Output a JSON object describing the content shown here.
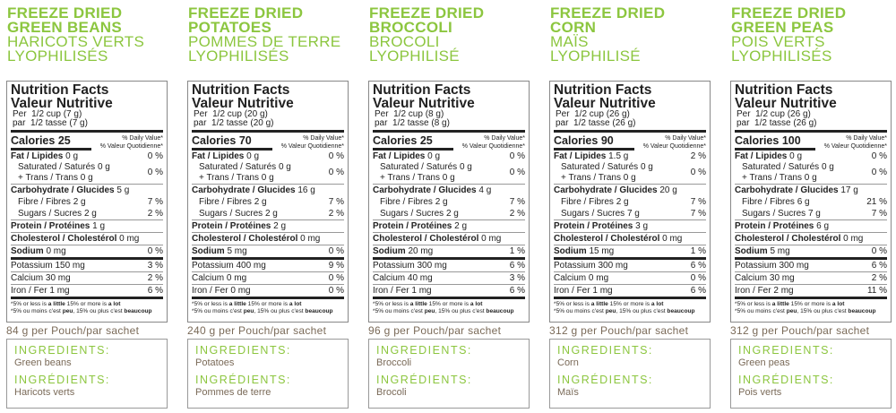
{
  "labels": {
    "nf_en": "Nutrition Facts",
    "nf_fr": "Valeur Nutritive",
    "per": "Per",
    "par": "par",
    "dv_en": "% Daily Value*",
    "dv_fr": "% Valeur Quotidienne*",
    "fat": "Fat / Lipides",
    "sat": "Saturated / Saturés",
    "trans": "+ Trans / Trans",
    "carb": "Carbohydrate / Glucides",
    "fibre": "Fibre / Fibres",
    "sugars": "Sugars / Sucres",
    "protein": "Protein / Protéines",
    "chol": "Cholesterol / Cholestérol",
    "sodium": "Sodium",
    "potassium": "Potassium",
    "calcium": "Calcium",
    "iron": "Iron / Fer",
    "calories": "Calories",
    "foot1a": "*5% or less is ",
    "foot1b": "a little",
    "foot1c": " 15% or more is ",
    "foot1d": "a lot",
    "foot2a": "*5% ou moins c'est ",
    "foot2b": "peu",
    "foot2c": ", 15% ou plus c'est ",
    "foot2d": "beaucoup",
    "ing_en": "INGREDIENTS:",
    "ing_fr": "INGRÉDIENTS:"
  },
  "colors": {
    "accent": "#8cc63f",
    "text_brown": "#7a6a58"
  },
  "products": [
    {
      "title_en": [
        "FREEZE DRIED",
        "GREEN BEANS"
      ],
      "title_fr": [
        "HARICOTS VERTS",
        "LYOPHILISÉS"
      ],
      "serving_en": "1/2 cup (7 g)",
      "serving_fr": "1/2 tasse (7 g)",
      "calories": "25",
      "fat": "0 g",
      "fat_dv": "0 %",
      "sat": "0 g",
      "trans": "0 g",
      "sat_dv": "0 %",
      "carb": "5 g",
      "fibre": "2 g",
      "fibre_dv": "7 %",
      "sugars": "2 g",
      "sugars_dv": "2 %",
      "protein": "1 g",
      "chol": "0 mg",
      "sodium": "0 mg",
      "sodium_dv": "0 %",
      "potassium": "150 mg",
      "potassium_dv": "3 %",
      "calcium": "30 mg",
      "calcium_dv": "2 %",
      "iron": "1 mg",
      "iron_dv": "6 %",
      "pouch": "84 g per Pouch/par sachet",
      "ing_en": "Green beans",
      "ing_fr": "Haricots verts"
    },
    {
      "title_en": [
        "FREEZE DRIED",
        "POTATOES"
      ],
      "title_fr": [
        "POMMES DE TERRE",
        "LYOPHILISÉS"
      ],
      "serving_en": "1/2 cup (20 g)",
      "serving_fr": "1/2 tasse (20 g)",
      "calories": "70",
      "fat": "0 g",
      "fat_dv": "0 %",
      "sat": "0 g",
      "trans": "0 g",
      "sat_dv": "0 %",
      "carb": "16 g",
      "fibre": "2 g",
      "fibre_dv": "7 %",
      "sugars": "2 g",
      "sugars_dv": "2 %",
      "protein": "2 g",
      "chol": "0 mg",
      "sodium": "5 mg",
      "sodium_dv": "0 %",
      "potassium": "400 mg",
      "potassium_dv": "9 %",
      "calcium": "0 mg",
      "calcium_dv": "0 %",
      "iron": "0 mg",
      "iron_dv": "0 %",
      "pouch": "240 g per Pouch/par sachet",
      "ing_en": "Potatoes",
      "ing_fr": "Pommes de terre"
    },
    {
      "title_en": [
        "FREEZE DRIED",
        "BROCCOLI"
      ],
      "title_fr": [
        "BROCOLI",
        "LYOPHILISÉ"
      ],
      "serving_en": "1/2 cup (8 g)",
      "serving_fr": "1/2 tasse (8 g)",
      "calories": "25",
      "fat": "0 g",
      "fat_dv": "0 %",
      "sat": "0 g",
      "trans": "0 g",
      "sat_dv": "0 %",
      "carb": "4 g",
      "fibre": "2 g",
      "fibre_dv": "7 %",
      "sugars": "2 g",
      "sugars_dv": "2 %",
      "protein": "2 g",
      "chol": "0 mg",
      "sodium": "20 mg",
      "sodium_dv": "1 %",
      "potassium": "300 mg",
      "potassium_dv": "6 %",
      "calcium": "40 mg",
      "calcium_dv": "3 %",
      "iron": "1 mg",
      "iron_dv": "6 %",
      "pouch": "96 g per Pouch/par sachet",
      "ing_en": "Broccoli",
      "ing_fr": "Brocoli"
    },
    {
      "title_en": [
        "FREEZE DRIED",
        "CORN"
      ],
      "title_fr": [
        "MAÏS",
        "LYOPHILISÉ"
      ],
      "serving_en": "1/2 cup (26 g)",
      "serving_fr": "1/2 tasse (26 g)",
      "calories": "90",
      "fat": "1.5 g",
      "fat_dv": "2 %",
      "sat": "0 g",
      "trans": "0 g",
      "sat_dv": "0 %",
      "carb": "20 g",
      "fibre": "2 g",
      "fibre_dv": "7 %",
      "sugars": "7 g",
      "sugars_dv": "7 %",
      "protein": "3 g",
      "chol": "0 mg",
      "sodium": "15 mg",
      "sodium_dv": "1 %",
      "potassium": "300 mg",
      "potassium_dv": "6 %",
      "calcium": "0 mg",
      "calcium_dv": "0 %",
      "iron": "1 mg",
      "iron_dv": "6 %",
      "pouch": "312 g per Pouch/par sachet",
      "ing_en": "Corn",
      "ing_fr": "Maïs"
    },
    {
      "title_en": [
        "FREEZE DRIED",
        "GREEN PEAS"
      ],
      "title_fr": [
        "POIS VERTS",
        "LYOPHILISÉS"
      ],
      "serving_en": "1/2 cup (26 g)",
      "serving_fr": "1/2 tasse (26 g)",
      "calories": "100",
      "fat": "0 g",
      "fat_dv": "0 %",
      "sat": "0 g",
      "trans": "0 g",
      "sat_dv": "0 %",
      "carb": "17 g",
      "fibre": "6 g",
      "fibre_dv": "21 %",
      "sugars": "7 g",
      "sugars_dv": "7 %",
      "protein": "6 g",
      "chol": "0 mg",
      "sodium": "5 mg",
      "sodium_dv": "0 %",
      "potassium": "300 mg",
      "potassium_dv": "6 %",
      "calcium": "30 mg",
      "calcium_dv": "2 %",
      "iron": "2 mg",
      "iron_dv": "11 %",
      "pouch": "312 g per Pouch/par sachet",
      "ing_en": "Green peas",
      "ing_fr": "Pois verts"
    }
  ]
}
